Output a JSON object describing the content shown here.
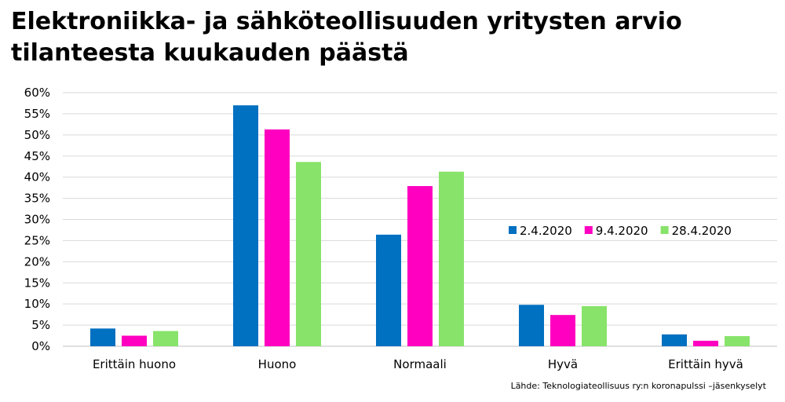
{
  "chart_data": {
    "type": "bar",
    "title": "Elektroniikka- ja sähköteollisuuden yritysten arvio tilanteesta kuukauden päästä",
    "categories": [
      "Erittäin huono",
      "Huono",
      "Normaali",
      "Hyvä",
      "Erittäin hyvä"
    ],
    "series": [
      {
        "name": "2.4.2020",
        "color": "#0070C0",
        "values": [
          4.2,
          57.0,
          26.4,
          9.8,
          2.8
        ]
      },
      {
        "name": "9.4.2020",
        "color": "#FF00C0",
        "values": [
          2.5,
          51.3,
          37.9,
          7.4,
          1.3
        ]
      },
      {
        "name": "28.4.2020",
        "color": "#88E36A",
        "values": [
          3.6,
          43.6,
          41.3,
          9.5,
          2.4
        ]
      }
    ],
    "ylim": [
      0,
      60
    ],
    "yticks": [
      "0%",
      "5%",
      "10%",
      "15%",
      "20%",
      "25%",
      "30%",
      "35%",
      "40%",
      "45%",
      "50%",
      "55%",
      "60%"
    ],
    "grid": true,
    "legend_position": "right-middle",
    "source": "Lähde: Teknologiateollisuus ry:n koronapulssi –jäsenkyselyt"
  },
  "colors": {
    "gridline": "#D9D9D9",
    "axis": "#BFBFBF"
  }
}
